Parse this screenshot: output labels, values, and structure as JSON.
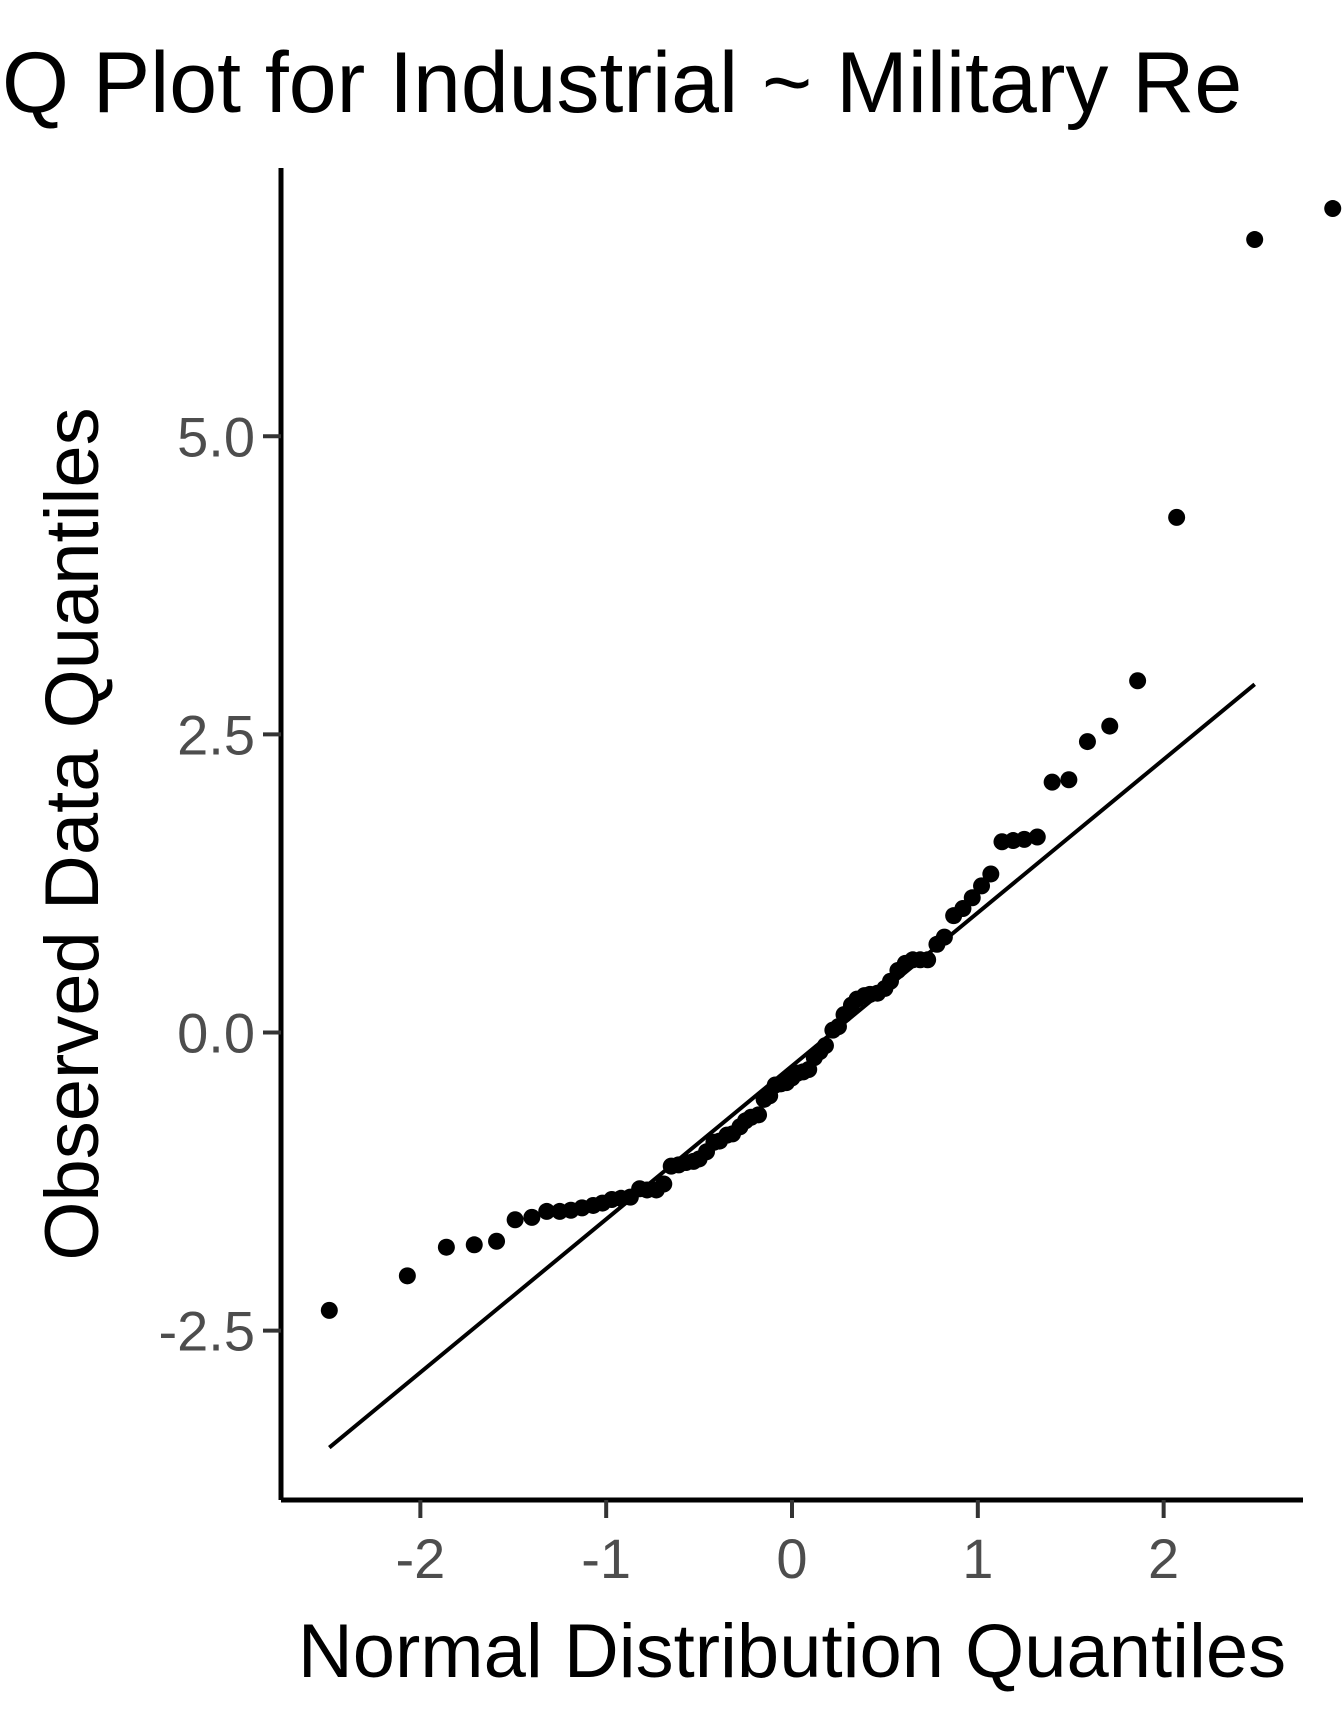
{
  "chart_data": {
    "type": "scatter",
    "title": "Q Plot for Industrial ~ Military Re",
    "xlabel": "Normal Distribution Quantiles",
    "ylabel": "Observed Data Quantiles",
    "xlim": [
      -2.75,
      2.75
    ],
    "ylim": [
      -3.92,
      7.25
    ],
    "x_ticks": [
      -2,
      -1,
      0,
      1,
      2
    ],
    "y_ticks": [
      -2.5,
      0.0,
      2.5,
      5.0
    ],
    "x_tick_labels": [
      "-2",
      "-1",
      "0",
      "1",
      "2"
    ],
    "y_tick_labels": [
      "-2.5",
      "0.0",
      "2.5",
      "5.0"
    ],
    "grid": false,
    "legend": "none",
    "point_color": "#000000",
    "line_color": "#000000",
    "reference_line": {
      "x": [
        -2.49,
        2.49
      ],
      "y": [
        -3.48,
        2.92
      ]
    },
    "points": [
      [
        -2.49,
        -2.33
      ],
      [
        -2.07,
        -2.04
      ],
      [
        -1.86,
        -1.8
      ],
      [
        -1.71,
        -1.78
      ],
      [
        -1.59,
        -1.75
      ],
      [
        -1.49,
        -1.57
      ],
      [
        -1.4,
        -1.55
      ],
      [
        -1.32,
        -1.5
      ],
      [
        -1.25,
        -1.5
      ],
      [
        -1.19,
        -1.49
      ],
      [
        -1.13,
        -1.47
      ],
      [
        -1.07,
        -1.45
      ],
      [
        -1.02,
        -1.43
      ],
      [
        -0.97,
        -1.4
      ],
      [
        -0.92,
        -1.39
      ],
      [
        -0.87,
        -1.38
      ],
      [
        -0.82,
        -1.31
      ],
      [
        -0.78,
        -1.32
      ],
      [
        -0.73,
        -1.32
      ],
      [
        -0.69,
        -1.27
      ],
      [
        -0.65,
        -1.12
      ],
      [
        -0.61,
        -1.11
      ],
      [
        -0.57,
        -1.09
      ],
      [
        -0.53,
        -1.08
      ],
      [
        -0.5,
        -1.06
      ],
      [
        -0.46,
        -1.0
      ],
      [
        -0.42,
        -0.92
      ],
      [
        -0.39,
        -0.91
      ],
      [
        -0.35,
        -0.86
      ],
      [
        -0.32,
        -0.85
      ],
      [
        -0.28,
        -0.79
      ],
      [
        -0.25,
        -0.74
      ],
      [
        -0.22,
        -0.71
      ],
      [
        -0.18,
        -0.69
      ],
      [
        -0.15,
        -0.56
      ],
      [
        -0.12,
        -0.53
      ],
      [
        -0.09,
        -0.44
      ],
      [
        -0.06,
        -0.43
      ],
      [
        -0.03,
        -0.42
      ],
      [
        0.0,
        -0.38
      ],
      [
        0.03,
        -0.34
      ],
      [
        0.06,
        -0.33
      ],
      [
        0.09,
        -0.31
      ],
      [
        0.12,
        -0.21
      ],
      [
        0.15,
        -0.16
      ],
      [
        0.18,
        -0.11
      ],
      [
        0.22,
        0.02
      ],
      [
        0.25,
        0.05
      ],
      [
        0.28,
        0.15
      ],
      [
        0.32,
        0.23
      ],
      [
        0.35,
        0.28
      ],
      [
        0.39,
        0.31
      ],
      [
        0.42,
        0.32
      ],
      [
        0.46,
        0.33
      ],
      [
        0.5,
        0.37
      ],
      [
        0.53,
        0.43
      ],
      [
        0.57,
        0.52
      ],
      [
        0.61,
        0.58
      ],
      [
        0.65,
        0.61
      ],
      [
        0.69,
        0.61
      ],
      [
        0.73,
        0.61
      ],
      [
        0.78,
        0.74
      ],
      [
        0.82,
        0.8
      ],
      [
        0.87,
        0.98
      ],
      [
        0.92,
        1.04
      ],
      [
        0.97,
        1.13
      ],
      [
        1.02,
        1.23
      ],
      [
        1.07,
        1.33
      ],
      [
        1.13,
        1.6
      ],
      [
        1.19,
        1.61
      ],
      [
        1.25,
        1.62
      ],
      [
        1.32,
        1.64
      ],
      [
        1.4,
        2.1
      ],
      [
        1.49,
        2.12
      ],
      [
        1.59,
        2.44
      ],
      [
        1.71,
        2.57
      ],
      [
        1.86,
        2.95
      ],
      [
        2.07,
        4.32
      ],
      [
        2.49,
        6.65
      ],
      [
        2.91,
        6.91
      ]
    ]
  }
}
